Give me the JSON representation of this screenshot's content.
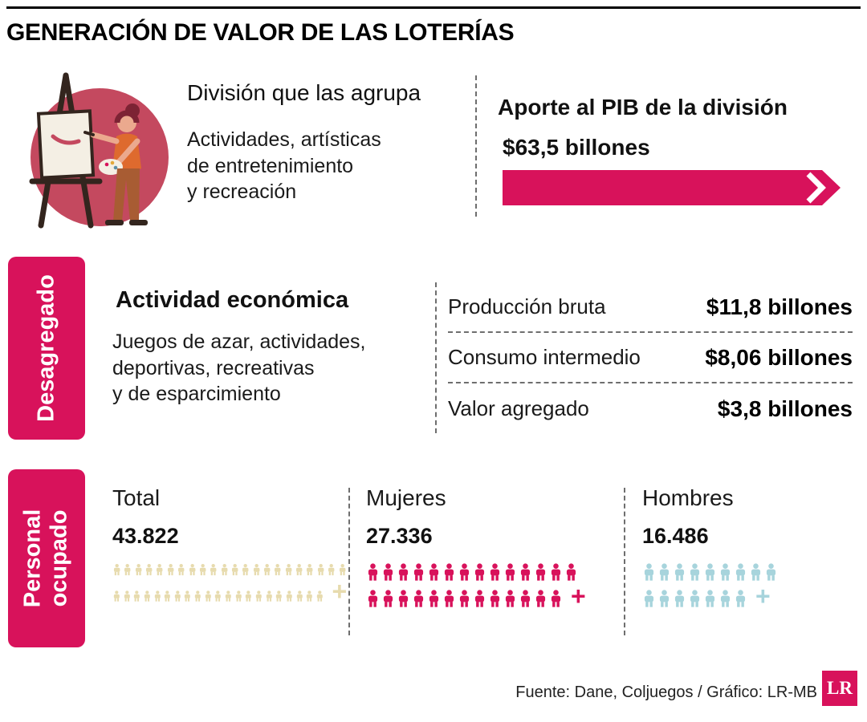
{
  "title": "GENERACIÓN DE VALOR DE LAS LOTERÍAS",
  "colors": {
    "brand": "#D8125B",
    "beige": "#E7DBAE",
    "blue": "#A7D4DC"
  },
  "division": {
    "heading": "División que las agrupa",
    "description": "Actividades, artísticas\nde entretenimiento\ny recreación",
    "pib_heading": "Aporte al PIB de la división",
    "pib_value": "$63,5 billones"
  },
  "desagregado": {
    "label": "Desagregado",
    "heading": "Actividad económica",
    "description": "Juegos de azar, actividades,\ndeportivas, recreativas\ny de esparcimiento",
    "rows": [
      {
        "label": "Producción bruta",
        "value": "$11,8 billones"
      },
      {
        "label": "Consumo intermedio",
        "value": "$8,06 billones"
      },
      {
        "label": "Valor agregado",
        "value": "$3,8 billones"
      }
    ]
  },
  "personal": {
    "label": "Personal\nocupado",
    "groups": [
      {
        "name": "Total",
        "value": "43.822",
        "color": "#E7DBAE",
        "rows": [
          22,
          21
        ],
        "plus": "+"
      },
      {
        "name": "Mujeres",
        "value": "27.336",
        "color": "#D8125B",
        "rows": [
          14,
          13
        ],
        "plus": "+"
      },
      {
        "name": "Hombres",
        "value": "16.486",
        "color": "#A7D4DC",
        "rows": [
          9,
          7
        ],
        "plus": "+"
      }
    ]
  },
  "footer": {
    "source": "Fuente:  Dane, Coljuegos / Gráfico: LR-MB",
    "logo": "LR"
  },
  "chart_data": [
    {
      "type": "bar",
      "title": "Aporte al PIB de la división",
      "categories": [
        "Actividades, artísticas de entretenimiento y recreación"
      ],
      "values": [
        63.5
      ],
      "unit": "billones de pesos",
      "ylabel": ""
    },
    {
      "type": "table",
      "title": "Desagregado - Actividad económica: Juegos de azar, actividades, deportivas, recreativas y de esparcimiento",
      "categories": [
        "Producción bruta",
        "Consumo intermedio",
        "Valor agregado"
      ],
      "values": [
        11.8,
        8.06,
        3.8
      ],
      "unit": "billones de pesos"
    },
    {
      "type": "bar",
      "title": "Personal ocupado",
      "categories": [
        "Total",
        "Mujeres",
        "Hombres"
      ],
      "values": [
        43822,
        27336,
        16486
      ],
      "unit": "personas"
    }
  ]
}
